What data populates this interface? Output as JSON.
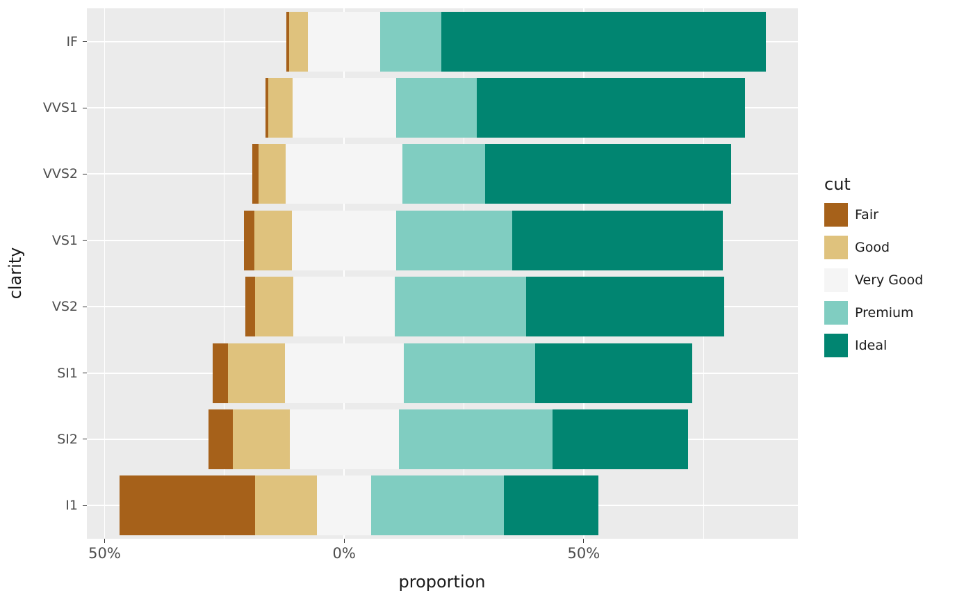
{
  "chart_data": {
    "type": "bar",
    "variant": "diverging-stacked",
    "orientation": "horizontal",
    "title": "",
    "xlabel": "proportion",
    "ylabel": "clarity",
    "categories": [
      "IF",
      "VVS1",
      "VVS2",
      "VS1",
      "VS2",
      "SI1",
      "SI2",
      "I1"
    ],
    "series": [
      {
        "name": "Fair",
        "color": "#A6611A",
        "values": [
          0.5,
          0.5,
          1.4,
          2.1,
          2.1,
          3.1,
          5.1,
          28.3
        ]
      },
      {
        "name": "Good",
        "color": "#DFC27D",
        "values": [
          4.0,
          5.1,
          5.6,
          7.9,
          8.0,
          11.9,
          11.8,
          13.0
        ]
      },
      {
        "name": "Very Good",
        "color": "#F5F5F5",
        "values": [
          15.0,
          21.6,
          24.4,
          21.7,
          21.1,
          24.8,
          22.8,
          11.3
        ]
      },
      {
        "name": "Premium",
        "color": "#80CDC1",
        "values": [
          12.8,
          16.9,
          17.2,
          24.3,
          27.4,
          27.4,
          32.1,
          27.7
        ]
      },
      {
        "name": "Ideal",
        "color": "#018571",
        "values": [
          67.7,
          56.0,
          51.4,
          43.9,
          41.4,
          32.8,
          28.3,
          19.7
        ]
      }
    ],
    "center_on": "Very Good",
    "units": "%",
    "xlim": [
      -53.7,
      94.7
    ],
    "x_major_ticks": [
      {
        "value": -50,
        "label": "50%"
      },
      {
        "value": 0,
        "label": "0%"
      },
      {
        "value": 50,
        "label": "50%"
      }
    ],
    "x_minor_ticks": [
      -25,
      25,
      75
    ],
    "bar_width_fraction": 0.9,
    "legend": {
      "title": "cut",
      "position": "right",
      "entries": [
        "Fair",
        "Good",
        "Very Good",
        "Premium",
        "Ideal"
      ]
    },
    "style": {
      "panel_background": "#EBEBEB",
      "grid_color": "#FFFFFF",
      "tick_text_color": "#4D4D4D",
      "axis_title_color": "#1A1A1A",
      "page_background": "#FFFFFF"
    }
  }
}
